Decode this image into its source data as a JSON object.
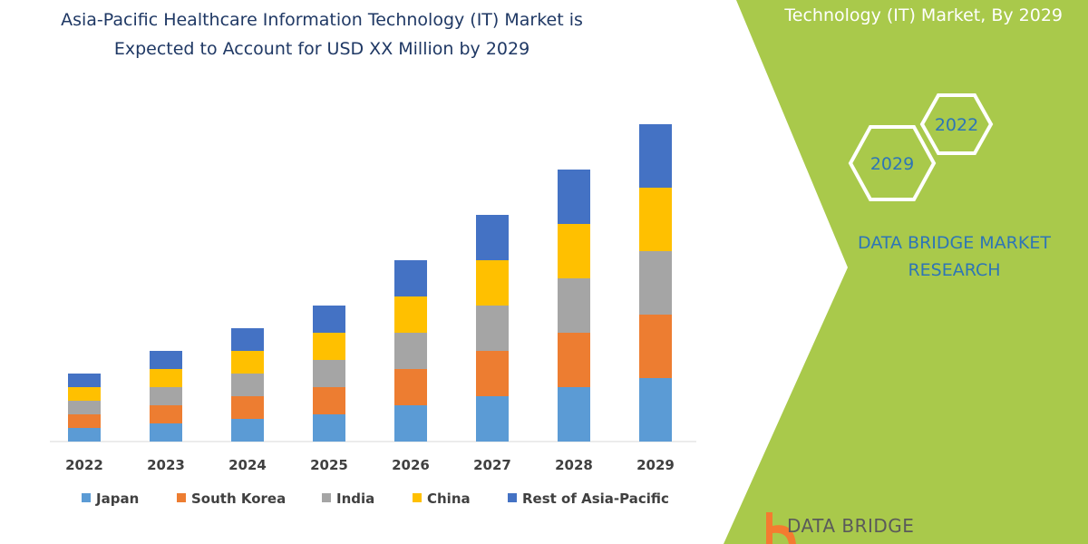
{
  "header": {
    "title_line1": "Asia-Pacific Healthcare Information Technology (IT) Market is",
    "title_line2": "Expected to Account for USD XX Million by 2029"
  },
  "side_panel": {
    "top_text": "Technology (IT) Market, By 2029",
    "hex_a": "2022",
    "hex_b": "2029",
    "brand_line1": "DATA BRIDGE MARKET",
    "brand_line2": "RESEARCH",
    "logo_text": "DATA BRIDGE",
    "panel_color": "#a9c94b",
    "brand_color": "#2e75b6"
  },
  "chart_data": {
    "type": "bar",
    "stacked": true,
    "title": "",
    "xlabel": "",
    "ylabel": "",
    "grid": false,
    "legend_position": "bottom",
    "categories": [
      "2022",
      "2023",
      "2024",
      "2025",
      "2026",
      "2027",
      "2028",
      "2029"
    ],
    "series": [
      {
        "name": "Japan",
        "color": "#5b9bd5",
        "values": [
          15,
          20,
          25,
          30,
          40,
          50,
          60,
          70
        ]
      },
      {
        "name": "South Korea",
        "color": "#ed7d31",
        "values": [
          15,
          20,
          25,
          30,
          40,
          50,
          60,
          70
        ]
      },
      {
        "name": "India",
        "color": "#a5a5a5",
        "values": [
          15,
          20,
          25,
          30,
          40,
          50,
          60,
          70
        ]
      },
      {
        "name": "China",
        "color": "#ffc000",
        "values": [
          15,
          20,
          25,
          30,
          40,
          50,
          60,
          70
        ]
      },
      {
        "name": "Rest of Asia-Pacific",
        "color": "#4472c4",
        "values": [
          15,
          20,
          25,
          30,
          40,
          50,
          60,
          70
        ]
      }
    ]
  }
}
